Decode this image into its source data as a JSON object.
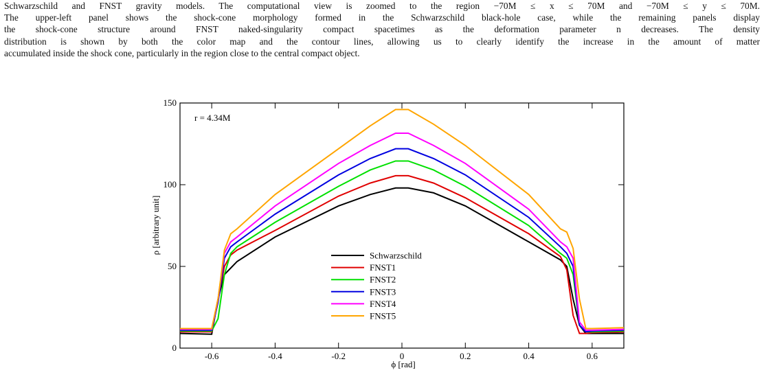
{
  "text": {
    "lines": [
      "Schwarzschild and FNST gravity models. The computational view is zoomed to the region −70M ≤ x ≤ 70M and −70M ≤ y ≤ 70M.",
      "The upper-left panel shows the shock-cone morphology formed in the Schwarzschild black-hole case, while the remaining panels display",
      "the shock-cone structure around FNST naked-singularity compact spacetimes as the deformation parameter n decreases. The density",
      "distribution is shown by both the color map and the contour lines, allowing us to clearly identify the increase in the amount of matter",
      "accumulated inside the shock cone, particularly in the region close to the central compact object."
    ]
  },
  "chart_data": {
    "type": "line",
    "annotation": "r = 4.34M",
    "x_label": "ϕ [rad]",
    "y_label": "ρ [arbitrary unit]",
    "x": [
      -0.7,
      -0.6,
      -0.58,
      -0.56,
      -0.54,
      -0.52,
      -0.4,
      -0.2,
      -0.1,
      -0.02,
      0.02,
      0.1,
      0.2,
      0.4,
      0.5,
      0.52,
      0.54,
      0.56,
      0.58,
      0.6,
      0.7
    ],
    "series": [
      {
        "name": "Schwarzschild",
        "color": "#000000",
        "values": [
          9,
          8.5,
          30,
          45,
          49,
          53,
          68,
          87,
          94,
          98,
          98,
          95,
          87,
          65,
          54,
          50,
          30,
          14,
          9,
          9,
          9
        ]
      },
      {
        "name": "FNST1",
        "color": "#e00000",
        "values": [
          10,
          10,
          30,
          50,
          57,
          60,
          72,
          93,
          101,
          105.5,
          105.5,
          101,
          92,
          70,
          56,
          48,
          20,
          9,
          9,
          9.5,
          10
        ]
      },
      {
        "name": "FNST2",
        "color": "#00e000",
        "values": [
          10.5,
          10.5,
          18,
          45,
          58,
          62,
          77,
          99,
          109,
          114.5,
          114.5,
          109,
          99,
          75,
          58,
          55,
          45,
          14,
          10,
          10,
          10.5
        ]
      },
      {
        "name": "FNST3",
        "color": "#0000e0",
        "values": [
          11,
          11,
          28,
          55,
          62,
          65,
          82,
          106,
          116,
          122,
          122,
          116,
          106,
          80,
          62,
          58,
          50,
          14,
          10,
          10.5,
          11
        ]
      },
      {
        "name": "FNST4",
        "color": "#ff00ff",
        "values": [
          11.5,
          11.5,
          30,
          58,
          65,
          68,
          87,
          113,
          124,
          131.5,
          131.5,
          124,
          113,
          85,
          65,
          62,
          55,
          16,
          11,
          11,
          11.5
        ]
      },
      {
        "name": "FNST5",
        "color": "#ffa500",
        "values": [
          12,
          12,
          30,
          60,
          70,
          73,
          94,
          122,
          136,
          146,
          146,
          137,
          124,
          94,
          73,
          71,
          61,
          30,
          12,
          12,
          12.5
        ]
      }
    ],
    "xlim": [
      -0.7,
      0.7
    ],
    "ylim": [
      0,
      150
    ],
    "xticks": [
      -0.6,
      -0.4,
      -0.2,
      0,
      0.2,
      0.4,
      0.6
    ],
    "yticks": [
      0,
      50,
      100,
      150
    ]
  }
}
